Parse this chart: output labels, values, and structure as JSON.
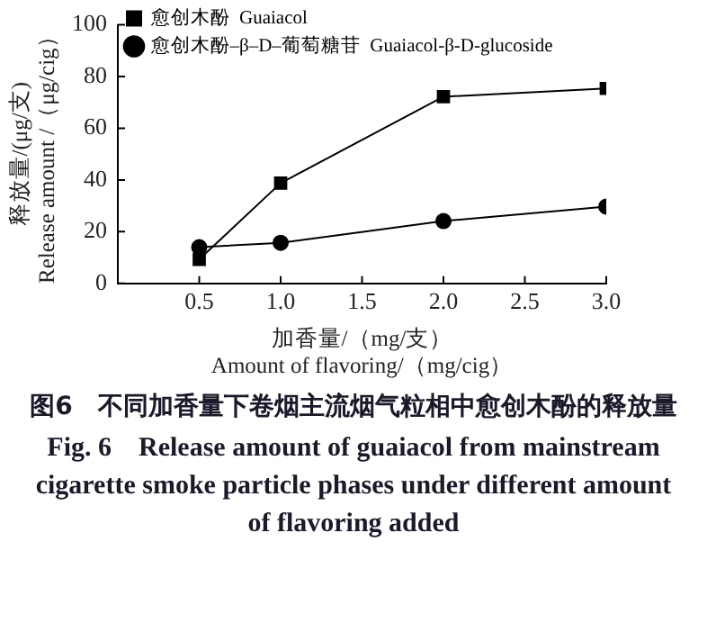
{
  "chart_data": {
    "type": "line",
    "xlabel": "加香量/（mg/支）\nAmount of flavoring/（mg/cig）",
    "ylabel": "释放量/(μg/支)\nRelease amount /（μg/cig）",
    "x": [
      0.5,
      1.0,
      2.0,
      3.0
    ],
    "series": [
      {
        "name": "愈创木酚  Guaiacol",
        "color": "#000000",
        "marker": "square",
        "values": [
          9.3,
          38.8,
          72.2,
          75.4
        ]
      },
      {
        "name": "愈创木酚–β–D–葡萄糖苷  Guaiacol-β-D-glucoside",
        "color": "#000000",
        "marker": "circle",
        "values": [
          14,
          15.7,
          24.1,
          29.7
        ]
      }
    ],
    "xlim": [
      0,
      3
    ],
    "xticks": [
      {
        "value": 0.5,
        "label": "0.5"
      },
      {
        "value": 1,
        "label": "1.0"
      },
      {
        "value": 1.5,
        "label": "1.5"
      },
      {
        "value": 2,
        "label": "2.0"
      },
      {
        "value": 2.5,
        "label": "2.5"
      },
      {
        "value": 3,
        "label": "3.0"
      }
    ],
    "ylim": [
      0,
      100
    ],
    "yticks": [
      0,
      20,
      40,
      60,
      80,
      100
    ],
    "grid": false,
    "legend": "top left",
    "line_style": "solid",
    "annotations": [
      "图6　不同加香量下卷烟主流烟气粒相中愈创木酚的释放量",
      "Fig. 6　Release amount of guaiacol from mainstream cigarette smoke particle phases under different amount of flavoring added"
    ]
  }
}
